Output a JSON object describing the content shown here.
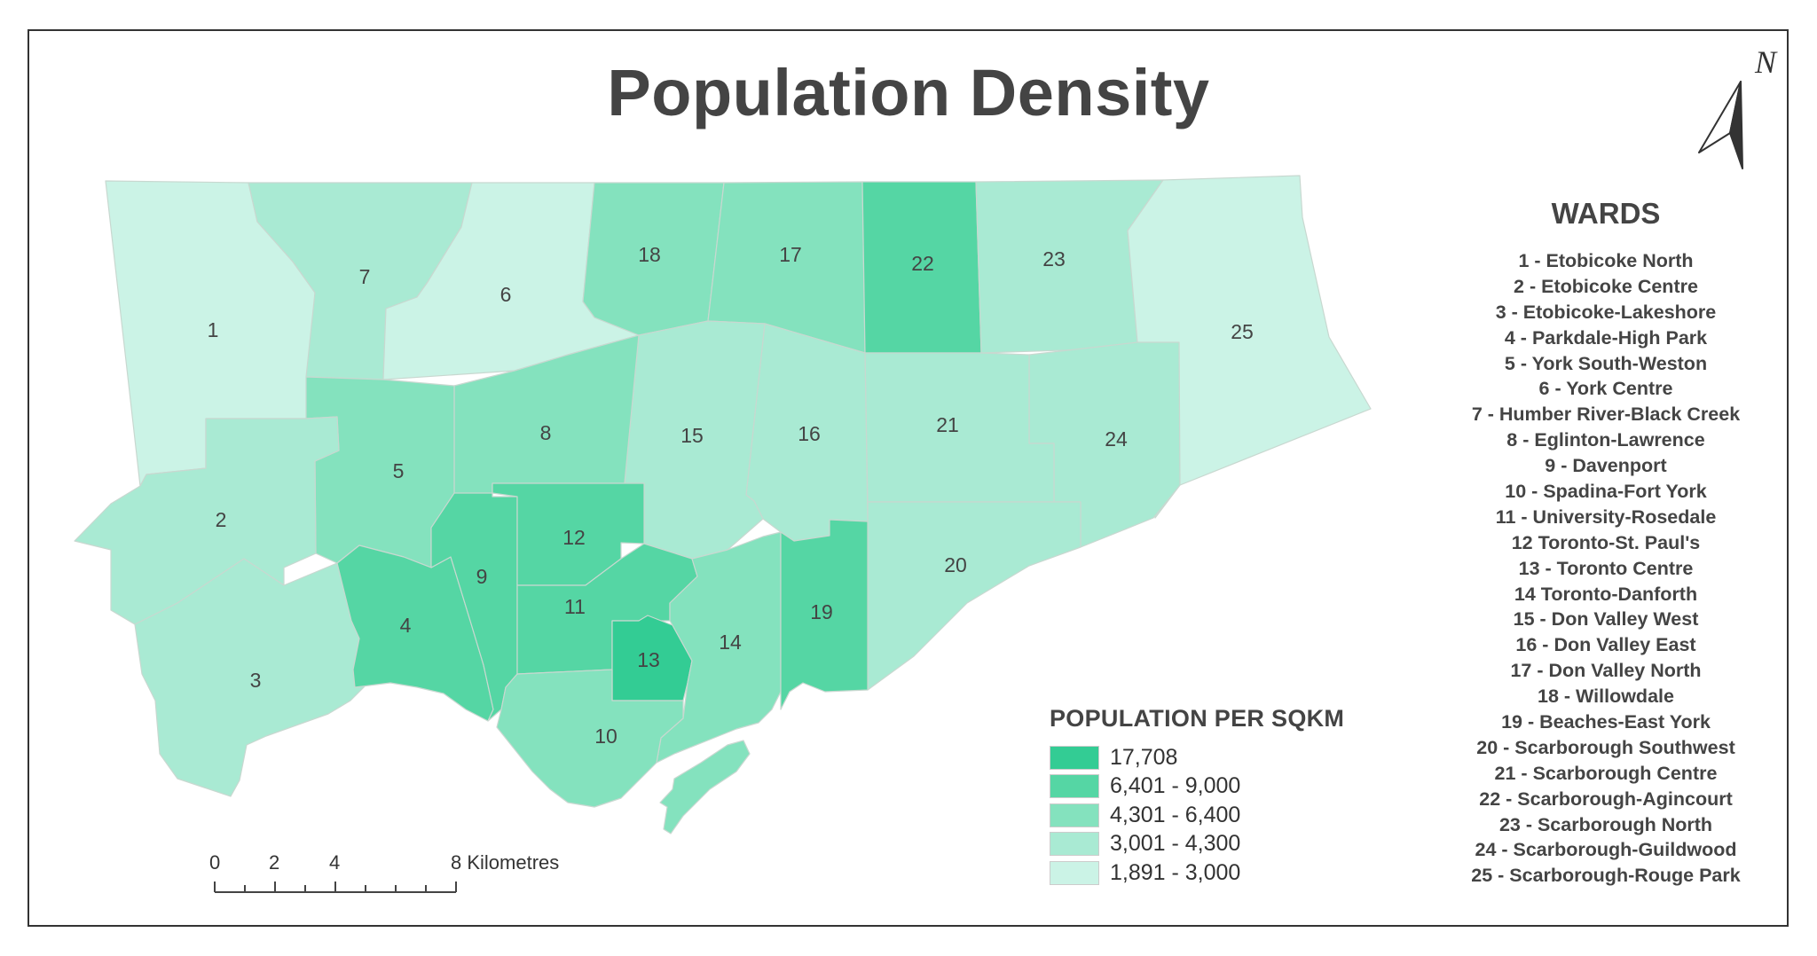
{
  "title": "Population Density",
  "north_arrow": {
    "label": "N",
    "icon": "north-arrow-icon"
  },
  "wards_panel": {
    "heading": "WARDS",
    "items": [
      "1 - Etobicoke North",
      "2 - Etobicoke Centre",
      "3 - Etobicoke-Lakeshore",
      "4 - Parkdale-High Park",
      "5 - York South-Weston",
      "6 - York Centre",
      "7 - Humber River-Black Creek",
      "8 - Eglinton-Lawrence",
      "9 - Davenport",
      "10 - Spadina-Fort York",
      "11 - University-Rosedale",
      "12 Toronto-St. Paul's",
      "13 - Toronto Centre",
      "14 Toronto-Danforth",
      "15 - Don Valley West",
      "16 - Don Valley East",
      "17 - Don Valley North",
      "18 - Willowdale",
      "19 - Beaches-East York",
      "20 - Scarborough Southwest",
      "21 - Scarborough Centre",
      "22 - Scarborough-Agincourt",
      "23 - Scarborough North",
      "24 - Scarborough-Guildwood",
      "25 - Scarborough-Rouge Park"
    ]
  },
  "legend": {
    "title": "POPULATION PER SQKM",
    "classes": [
      {
        "label": "17,708",
        "color": "#33cc94"
      },
      {
        "label": "6,401 - 9,000",
        "color": "#55d6a4"
      },
      {
        "label": "4,301 - 6,400",
        "color": "#84e2be"
      },
      {
        "label": "3,001 - 4,300",
        "color": "#a9ead3"
      },
      {
        "label": "1,891 - 3,000",
        "color": "#cbf3e6"
      }
    ]
  },
  "scale_bar": {
    "ticks": [
      "0",
      "2",
      "4"
    ],
    "end_label": "8 Kilometres"
  },
  "wards": [
    {
      "id": "1",
      "class": 4
    },
    {
      "id": "2",
      "class": 3
    },
    {
      "id": "3",
      "class": 3
    },
    {
      "id": "4",
      "class": 1
    },
    {
      "id": "5",
      "class": 2
    },
    {
      "id": "6",
      "class": 4
    },
    {
      "id": "7",
      "class": 3
    },
    {
      "id": "8",
      "class": 2
    },
    {
      "id": "9",
      "class": 1
    },
    {
      "id": "10",
      "class": 2
    },
    {
      "id": "11",
      "class": 1
    },
    {
      "id": "12",
      "class": 1
    },
    {
      "id": "13",
      "class": 0
    },
    {
      "id": "14",
      "class": 2
    },
    {
      "id": "15",
      "class": 3
    },
    {
      "id": "16",
      "class": 3
    },
    {
      "id": "17",
      "class": 2
    },
    {
      "id": "18",
      "class": 2
    },
    {
      "id": "19",
      "class": 1
    },
    {
      "id": "20",
      "class": 3
    },
    {
      "id": "21",
      "class": 3
    },
    {
      "id": "22",
      "class": 1
    },
    {
      "id": "23",
      "class": 3
    },
    {
      "id": "24",
      "class": 3
    },
    {
      "id": "25",
      "class": 4
    }
  ]
}
